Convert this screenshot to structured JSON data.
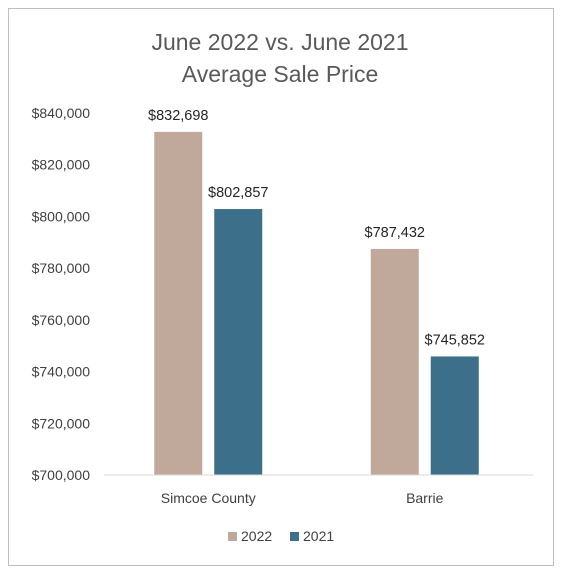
{
  "chart_data": {
    "type": "bar",
    "title_lines": [
      "June 2022 vs. June 2021",
      "Average Sale Price"
    ],
    "categories": [
      "Simcoe County",
      "Barrie"
    ],
    "series": [
      {
        "name": "2022",
        "values": [
          832698,
          787432
        ],
        "labels": [
          "$832,698",
          "$787,432"
        ],
        "color": "#c0a99a"
      },
      {
        "name": "2021",
        "values": [
          802857,
          745852
        ],
        "labels": [
          "$802,857",
          "$745,852"
        ],
        "color": "#3c6f8a"
      }
    ],
    "ylim": [
      700000,
      840000
    ],
    "yticks": [
      700000,
      720000,
      740000,
      760000,
      780000,
      800000,
      820000,
      840000
    ],
    "ytick_labels": [
      "$700,000",
      "$720,000",
      "$740,000",
      "$760,000",
      "$780,000",
      "$800,000",
      "$820,000",
      "$840,000"
    ],
    "grid": false,
    "legend_position": "bottom"
  }
}
